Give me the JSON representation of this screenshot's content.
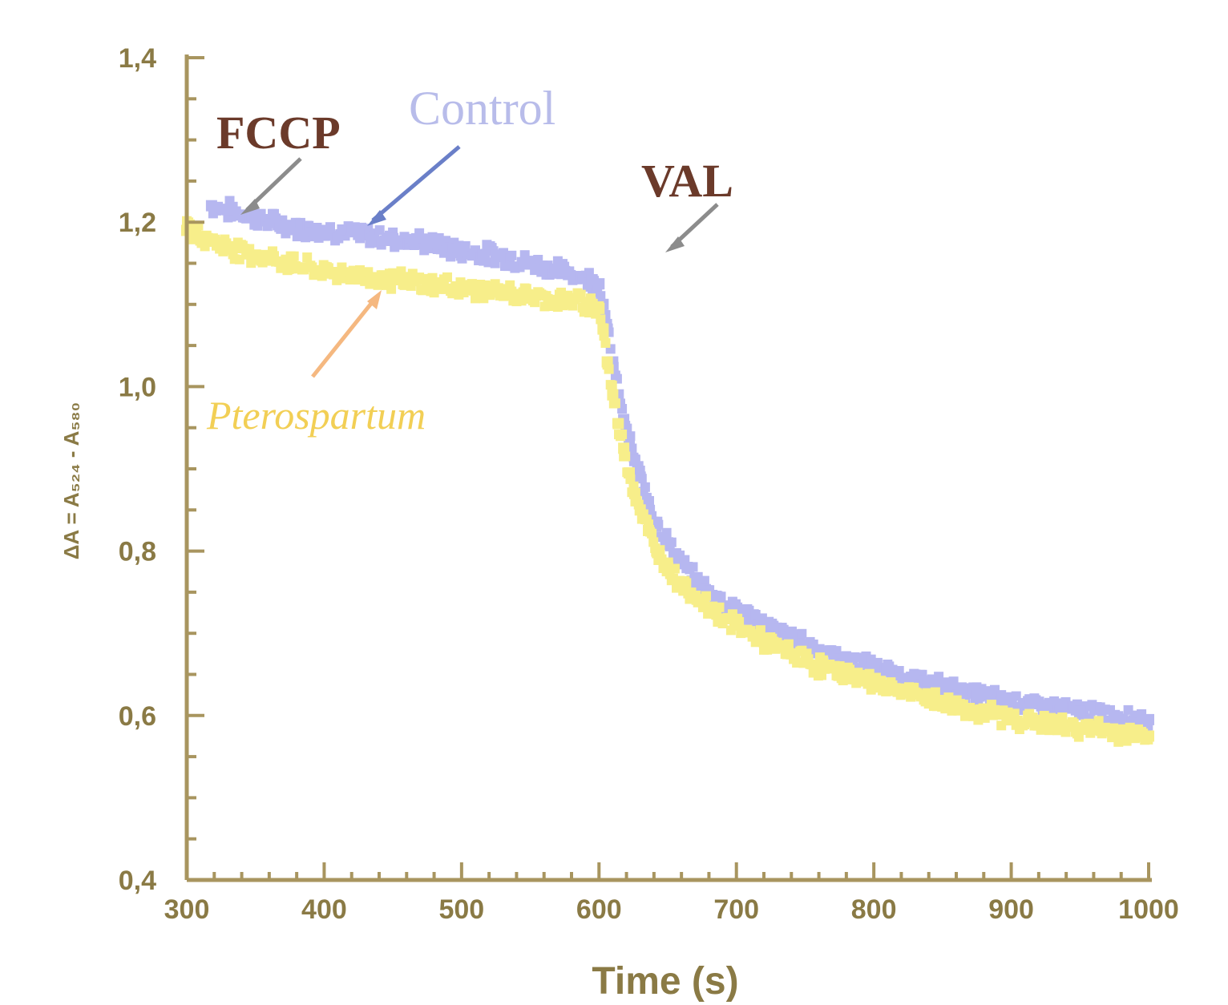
{
  "chart_data": {
    "type": "scatter",
    "title": "",
    "xlabel": "Time (s)",
    "ylabel": "ΔA = A₅₂₄ - A₅₈₀",
    "xlim": [
      300,
      1000
    ],
    "ylim": [
      0.4,
      1.4
    ],
    "x_ticks": [
      300,
      400,
      500,
      600,
      700,
      800,
      900,
      1000
    ],
    "x_tick_labels": [
      "300",
      "400",
      "500",
      "600",
      "700",
      "800",
      "900",
      "1000"
    ],
    "y_ticks": [
      0.4,
      0.6,
      0.8,
      1.0,
      1.2,
      1.4
    ],
    "y_tick_labels": [
      "0,4",
      "0,6",
      "0,8",
      "1,0",
      "1,2",
      "1,4"
    ],
    "grid": false,
    "annotations": [
      {
        "text": "FCCP",
        "color": "#6b3a2a",
        "italic": false,
        "arrow_to": [
          350,
          1.21
        ]
      },
      {
        "text": "Control",
        "color": "#b8bcea",
        "italic": false,
        "arrow_to": [
          460,
          1.19
        ]
      },
      {
        "text": "VAL",
        "color": "#6b3a2a",
        "italic": false,
        "arrow_to": [
          600,
          1.16
        ]
      },
      {
        "text": "Pterospartum",
        "color": "#f2cf55",
        "italic": true,
        "arrow_to": [
          460,
          1.11
        ]
      }
    ],
    "series": [
      {
        "name": "Control",
        "color": "#b6b7f0",
        "x": [
          318,
          330,
          350,
          375,
          400,
          425,
          450,
          475,
          500,
          525,
          550,
          575,
          595,
          600,
          603,
          606,
          610,
          614,
          618,
          622,
          626,
          630,
          636,
          642,
          650,
          660,
          670,
          685,
          700,
          720,
          740,
          760,
          780,
          800,
          825,
          850,
          875,
          900,
          925,
          950,
          975,
          1000
        ],
        "y": [
          1.22,
          1.215,
          1.205,
          1.195,
          1.19,
          1.185,
          1.18,
          1.175,
          1.165,
          1.16,
          1.15,
          1.14,
          1.13,
          1.125,
          1.1,
          1.07,
          1.03,
          0.99,
          0.96,
          0.935,
          0.91,
          0.89,
          0.86,
          0.835,
          0.81,
          0.785,
          0.765,
          0.745,
          0.73,
          0.71,
          0.695,
          0.68,
          0.668,
          0.658,
          0.645,
          0.635,
          0.625,
          0.618,
          0.61,
          0.605,
          0.6,
          0.595
        ]
      },
      {
        "name": "Pterospartum",
        "color": "#f7ee8a",
        "x": [
          300,
          315,
          330,
          350,
          375,
          400,
          425,
          450,
          475,
          500,
          525,
          550,
          575,
          595,
          600,
          603,
          606,
          610,
          614,
          618,
          622,
          626,
          630,
          636,
          642,
          650,
          660,
          670,
          685,
          700,
          720,
          740,
          760,
          780,
          800,
          825,
          850,
          875,
          900,
          925,
          950,
          975,
          1000
        ],
        "y": [
          1.19,
          1.18,
          1.17,
          1.16,
          1.15,
          1.14,
          1.135,
          1.13,
          1.125,
          1.12,
          1.115,
          1.11,
          1.105,
          1.1,
          1.095,
          1.07,
          1.03,
          0.99,
          0.955,
          0.925,
          0.895,
          0.87,
          0.85,
          0.825,
          0.8,
          0.78,
          0.76,
          0.745,
          0.725,
          0.71,
          0.69,
          0.675,
          0.66,
          0.65,
          0.64,
          0.628,
          0.615,
          0.605,
          0.597,
          0.59,
          0.585,
          0.58,
          0.575
        ]
      }
    ]
  }
}
